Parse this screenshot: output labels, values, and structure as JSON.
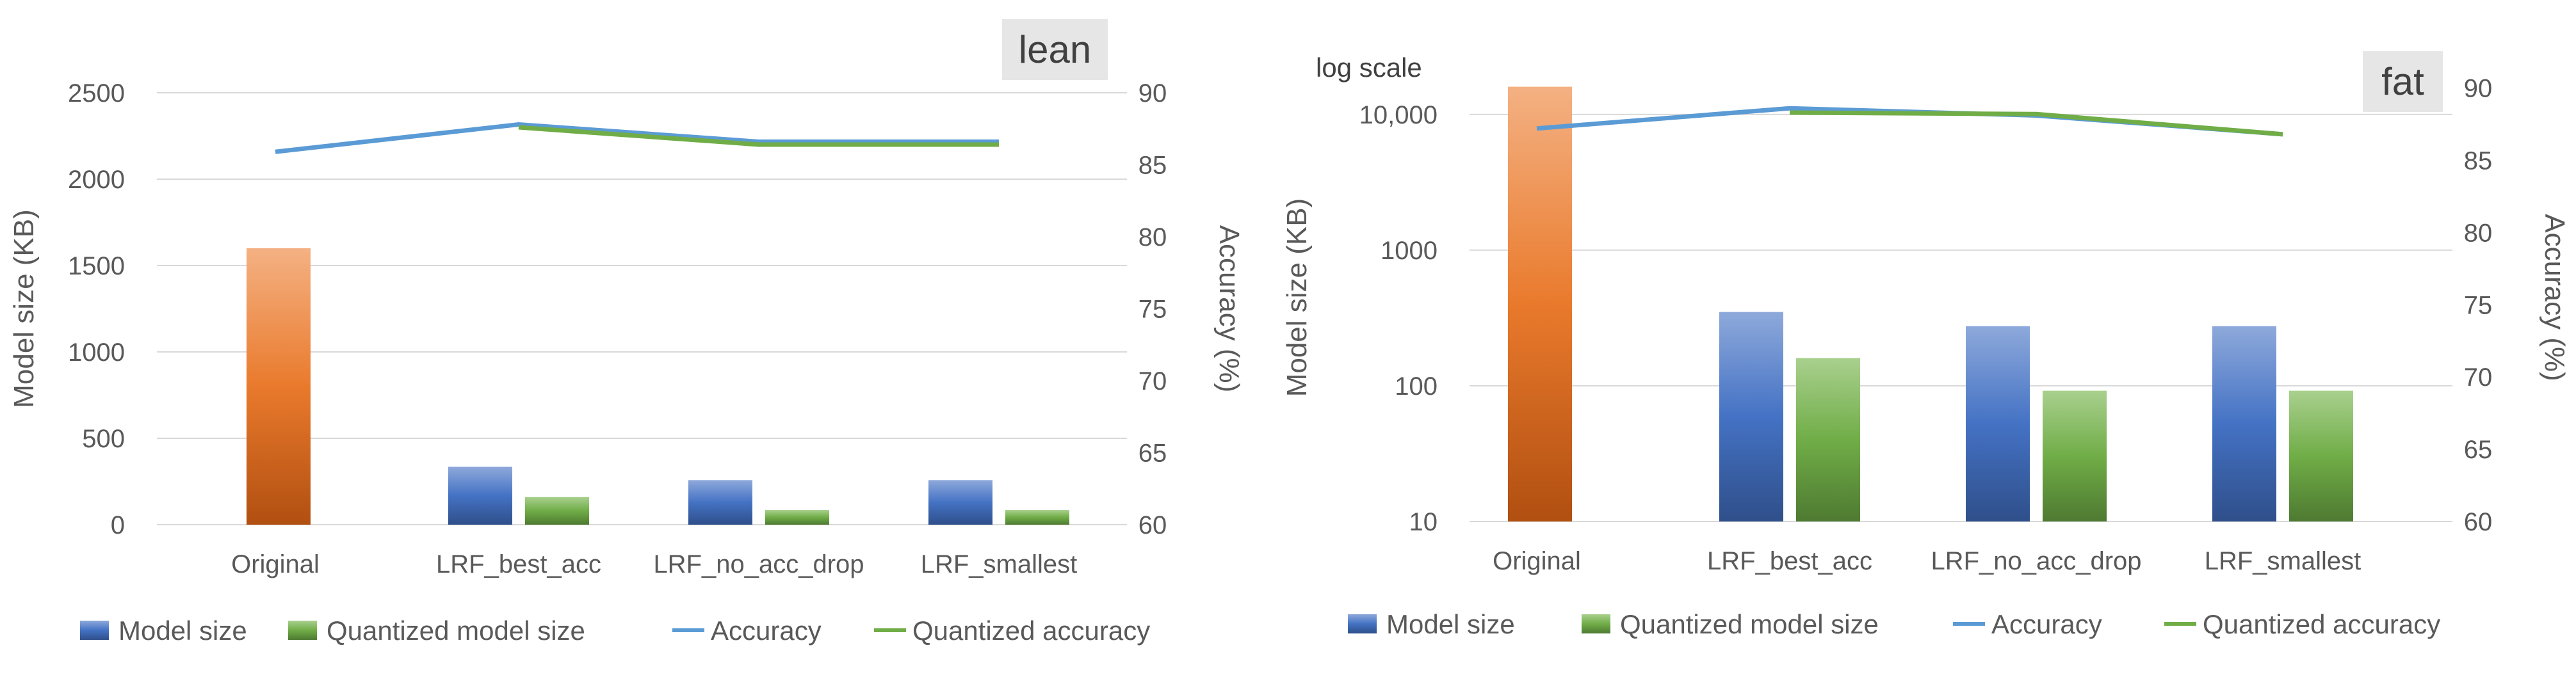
{
  "chart_data": [
    {
      "type": "bar",
      "tag": "lean",
      "note": "",
      "categories": [
        "Original",
        "LRF_best_acc",
        "LRF_no_acc_drop",
        "LRF_smallest"
      ],
      "ylabel": "Model size (KB)",
      "y2label": "Accuracy (%)",
      "ylim": [
        0,
        2500
      ],
      "yticks": [
        "0",
        "500",
        "1000",
        "1500",
        "2000",
        "2500"
      ],
      "y2lim": [
        60,
        90
      ],
      "y2ticks": [
        "60",
        "65",
        "70",
        "75",
        "80",
        "85",
        "90"
      ],
      "yscale": "linear",
      "grid": true,
      "legend_position": "bottom",
      "series": [
        {
          "name": "Model size",
          "kind": "bar",
          "axis": "left",
          "values": [
            1600,
            335,
            258,
            258
          ]
        },
        {
          "name": "Quantized model size",
          "kind": "bar",
          "axis": "left",
          "values": [
            null,
            160,
            85,
            85
          ]
        },
        {
          "name": "Accuracy",
          "kind": "line",
          "axis": "right",
          "values": [
            85.9,
            87.8,
            86.6,
            86.6
          ]
        },
        {
          "name": "Quantized accuracy",
          "kind": "line",
          "axis": "right",
          "values": [
            null,
            87.6,
            86.4,
            86.4
          ]
        }
      ],
      "colors": {
        "original": "#E97A2C",
        "model_size": "#4472C4",
        "quantized_model_size": "#70AD47",
        "accuracy": "#5B9BD5",
        "quantized_accuracy": "#70AD47"
      }
    },
    {
      "type": "bar",
      "tag": "fat",
      "note": "log scale",
      "categories": [
        "Original",
        "LRF_best_acc",
        "LRF_no_acc_drop",
        "LRF_smallest"
      ],
      "ylabel": "Model size (KB)",
      "y2label": "Accuracy (%)",
      "ylim": [
        10,
        20000
      ],
      "yticks": [
        "10",
        "100",
        "1000",
        "10,000"
      ],
      "y2lim": [
        60,
        91
      ],
      "y2ticks": [
        "60",
        "65",
        "70",
        "75",
        "80",
        "85",
        "90"
      ],
      "yscale": "log",
      "grid": true,
      "legend_position": "bottom",
      "series": [
        {
          "name": "Model size",
          "kind": "bar",
          "axis": "left",
          "values": [
            16000,
            350,
            275,
            275
          ]
        },
        {
          "name": "Quantized model size",
          "kind": "bar",
          "axis": "left",
          "values": [
            null,
            160,
            92,
            92
          ]
        },
        {
          "name": "Accuracy",
          "kind": "line",
          "axis": "right",
          "values": [
            87.2,
            88.6,
            88.1,
            86.8
          ]
        },
        {
          "name": "Quantized accuracy",
          "kind": "line",
          "axis": "right",
          "values": [
            null,
            88.3,
            88.2,
            86.8
          ]
        }
      ],
      "colors": {
        "original": "#E97A2C",
        "model_size": "#4472C4",
        "quantized_model_size": "#70AD47",
        "accuracy": "#5B9BD5",
        "quantized_accuracy": "#70AD47"
      }
    }
  ]
}
